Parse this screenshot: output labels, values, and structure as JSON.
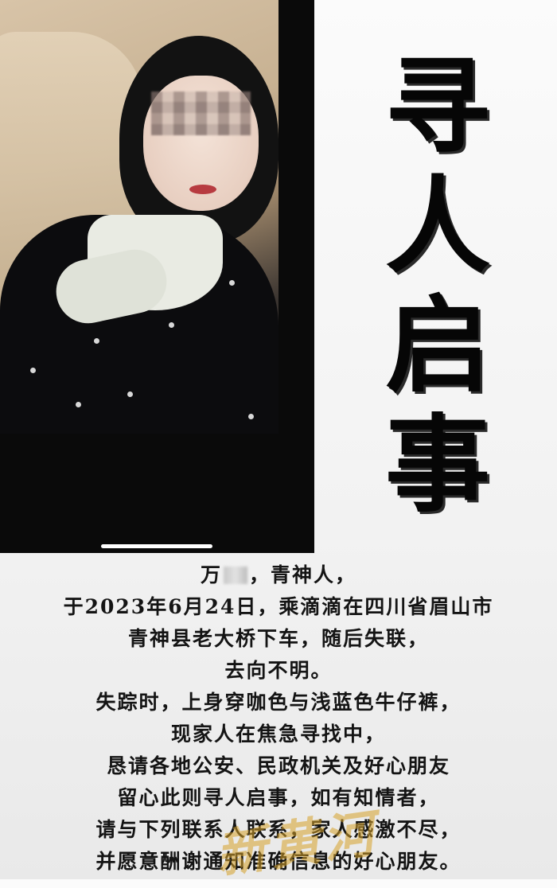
{
  "poster": {
    "title_chars": [
      "寻",
      "人",
      "启",
      "事"
    ],
    "notice": {
      "name_prefix": "万",
      "name_suffix": "，青神人，",
      "lines": [
        "于2023年6月24日，乘滴滴在四川省眉山市",
        "青神县老大桥下车，随后失联，",
        "去向不明。",
        "失踪时，上身穿咖色与浅蓝色牛仔裤，",
        "现家人在焦急寻找中，",
        "恳请各地公安、民政机关及好心朋友",
        "留心此则寻人启事，如有知情者，",
        "请与下列联系人联系，家人感激不尽，",
        "并愿意酬谢通知准确信息的好心朋友。"
      ]
    },
    "watermark": "新黄河"
  },
  "colors": {
    "title": "#060606",
    "text": "#141414",
    "photo_background": "#0a0a0a",
    "watermark": "#d6a028"
  }
}
